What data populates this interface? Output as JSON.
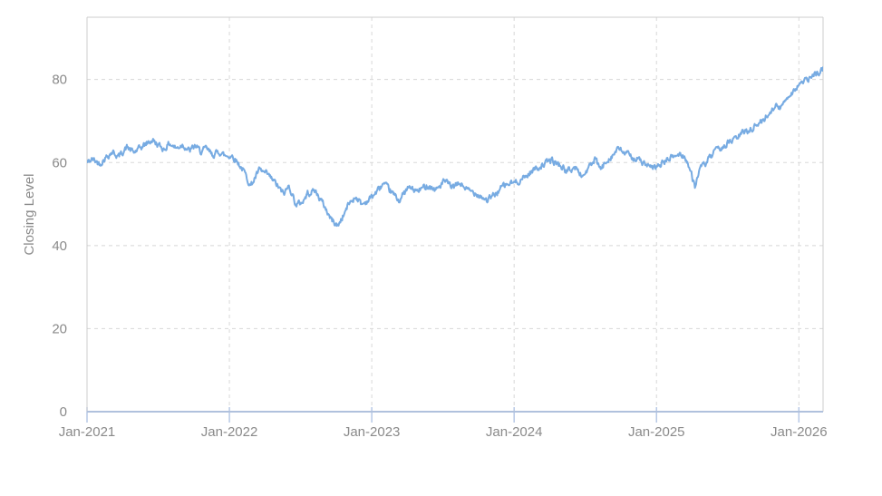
{
  "chart": {
    "kind": "time-series-line-chart"
  },
  "chart_data": {
    "type": "line",
    "title": "",
    "xlabel": "",
    "ylabel": "Closing Level",
    "x_unit": "decimal_year",
    "xlim": [
      2021.0,
      2026.17
    ],
    "ylim": [
      0,
      95
    ],
    "grid": "dashed",
    "legend": "none",
    "y_ticks": [
      {
        "v": 0,
        "label": "0"
      },
      {
        "v": 20,
        "label": "20"
      },
      {
        "v": 40,
        "label": "40"
      },
      {
        "v": 60,
        "label": "60"
      },
      {
        "v": 80,
        "label": "80"
      }
    ],
    "x_ticks": [
      {
        "t": 2021,
        "label": "Jan-2021"
      },
      {
        "t": 2022,
        "label": "Jan-2022"
      },
      {
        "t": 2023,
        "label": "Jan-2023"
      },
      {
        "t": 2024,
        "label": "Jan-2024"
      },
      {
        "t": 2025,
        "label": "Jan-2025"
      },
      {
        "t": 2026,
        "label": "Jan-2026"
      }
    ],
    "colors": {
      "line": "#77abe2",
      "grid": "#d8d8d8",
      "plot_border": "#cccccc",
      "x_axis": "#b0c1dd",
      "tick": "#b7c9e6",
      "label_text": "#8a8a8a"
    },
    "noise": {
      "seed": 42,
      "amplitude": 1.25,
      "persistence": 0.5,
      "step_days": 1.5
    },
    "series": [
      {
        "name": "Closing Level",
        "color": "#77abe2",
        "anchors": [
          [
            2021.0,
            60.0
          ],
          [
            2021.04,
            60.8
          ],
          [
            2021.09,
            59.7
          ],
          [
            2021.13,
            61.2
          ],
          [
            2021.18,
            62.6
          ],
          [
            2021.22,
            61.4
          ],
          [
            2021.28,
            63.7
          ],
          [
            2021.33,
            62.4
          ],
          [
            2021.37,
            63.4
          ],
          [
            2021.42,
            64.6
          ],
          [
            2021.46,
            65.4
          ],
          [
            2021.5,
            64.2
          ],
          [
            2021.54,
            63.2
          ],
          [
            2021.58,
            64.6
          ],
          [
            2021.63,
            63.4
          ],
          [
            2021.67,
            64.4
          ],
          [
            2021.72,
            62.8
          ],
          [
            2021.76,
            64.0
          ],
          [
            2021.8,
            62.6
          ],
          [
            2021.84,
            63.4
          ],
          [
            2021.88,
            61.8
          ],
          [
            2021.93,
            62.6
          ],
          [
            2021.97,
            61.6
          ],
          [
            2022.02,
            61.6
          ],
          [
            2022.06,
            60.0
          ],
          [
            2022.1,
            58.0
          ],
          [
            2022.15,
            54.4
          ],
          [
            2022.21,
            58.2
          ],
          [
            2022.27,
            57.0
          ],
          [
            2022.32,
            55.2
          ],
          [
            2022.38,
            52.4
          ],
          [
            2022.42,
            54.4
          ],
          [
            2022.47,
            49.7
          ],
          [
            2022.52,
            50.8
          ],
          [
            2022.55,
            52.6
          ],
          [
            2022.6,
            53.3
          ],
          [
            2022.66,
            50.0
          ],
          [
            2022.71,
            46.6
          ],
          [
            2022.76,
            44.7
          ],
          [
            2022.8,
            47.2
          ],
          [
            2022.84,
            50.2
          ],
          [
            2022.89,
            51.8
          ],
          [
            2022.93,
            49.9
          ],
          [
            2022.97,
            50.8
          ],
          [
            2023.02,
            52.4
          ],
          [
            2023.08,
            54.8
          ],
          [
            2023.13,
            53.2
          ],
          [
            2023.19,
            50.9
          ],
          [
            2023.26,
            54.0
          ],
          [
            2023.32,
            53.0
          ],
          [
            2023.39,
            54.6
          ],
          [
            2023.45,
            53.4
          ],
          [
            2023.51,
            55.5
          ],
          [
            2023.57,
            54.0
          ],
          [
            2023.62,
            55.0
          ],
          [
            2023.68,
            53.2
          ],
          [
            2023.74,
            52.6
          ],
          [
            2023.81,
            50.9
          ],
          [
            2023.87,
            52.4
          ],
          [
            2023.92,
            54.3
          ],
          [
            2023.97,
            54.9
          ],
          [
            2024.02,
            55.3
          ],
          [
            2024.08,
            56.6
          ],
          [
            2024.14,
            58.4
          ],
          [
            2024.2,
            59.4
          ],
          [
            2024.26,
            60.6
          ],
          [
            2024.32,
            59.4
          ],
          [
            2024.37,
            57.9
          ],
          [
            2024.43,
            58.8
          ],
          [
            2024.48,
            56.6
          ],
          [
            2024.53,
            59.0
          ],
          [
            2024.57,
            60.7
          ],
          [
            2024.61,
            58.3
          ],
          [
            2024.66,
            60.9
          ],
          [
            2024.7,
            62.0
          ],
          [
            2024.73,
            63.3
          ],
          [
            2024.78,
            62.3
          ],
          [
            2024.83,
            61.3
          ],
          [
            2024.88,
            60.6
          ],
          [
            2024.93,
            59.3
          ],
          [
            2024.97,
            58.5
          ],
          [
            2025.02,
            59.3
          ],
          [
            2025.07,
            60.6
          ],
          [
            2025.12,
            61.5
          ],
          [
            2025.17,
            62.0
          ],
          [
            2025.21,
            60.9
          ],
          [
            2025.25,
            56.5
          ],
          [
            2025.27,
            54.3
          ],
          [
            2025.3,
            58.2
          ],
          [
            2025.35,
            60.0
          ],
          [
            2025.41,
            62.6
          ],
          [
            2025.46,
            63.6
          ],
          [
            2025.5,
            64.7
          ],
          [
            2025.55,
            65.6
          ],
          [
            2025.61,
            67.3
          ],
          [
            2025.66,
            68.0
          ],
          [
            2025.7,
            69.0
          ],
          [
            2025.75,
            70.2
          ],
          [
            2025.79,
            71.8
          ],
          [
            2025.83,
            73.8
          ],
          [
            2025.87,
            72.9
          ],
          [
            2025.91,
            75.6
          ],
          [
            2025.95,
            76.8
          ],
          [
            2026.0,
            78.8
          ],
          [
            2026.04,
            79.5
          ],
          [
            2026.08,
            80.4
          ],
          [
            2026.12,
            81.2
          ],
          [
            2026.17,
            82.6
          ]
        ]
      }
    ]
  }
}
